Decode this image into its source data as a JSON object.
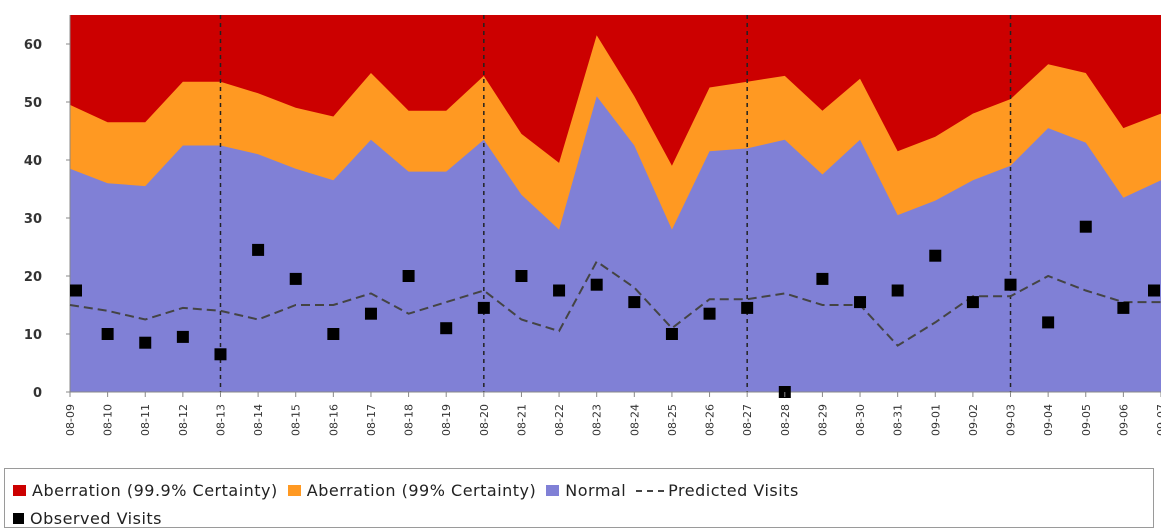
{
  "chart_data": {
    "type": "area",
    "title": "",
    "xlabel": "",
    "ylabel": "",
    "ylim": [
      0,
      65
    ],
    "yticks": [
      "0",
      "10",
      "20",
      "30",
      "40",
      "50",
      "60"
    ],
    "grid": "vertical dashed lines at weekly intervals",
    "x": [
      "08-09",
      "08-10",
      "08-11",
      "08-12",
      "08-13",
      "08-14",
      "08-15",
      "08-16",
      "08-17",
      "08-18",
      "08-19",
      "08-20",
      "08-21",
      "08-22",
      "08-23",
      "08-24",
      "08-25",
      "08-26",
      "08-27",
      "08-28",
      "08-29",
      "08-30",
      "08-31",
      "09-01",
      "09-02",
      "09-03",
      "09-04",
      "09-05",
      "09-06",
      "09-07"
    ],
    "series": [
      {
        "name": "Aberration (99.9% Certainty)",
        "color": "#cc0000",
        "values": [
          65,
          65,
          65,
          65,
          65,
          65,
          65,
          65,
          65,
          65,
          65,
          65,
          65,
          65,
          65,
          65,
          65,
          65,
          65,
          65,
          65,
          65,
          65,
          65,
          65,
          65,
          65,
          65,
          65,
          65
        ]
      },
      {
        "name": "Aberration (99% Certainty)",
        "color": "#ff9922",
        "values": [
          49.5,
          46.5,
          46.5,
          53.5,
          53.5,
          51.5,
          49,
          47.5,
          55,
          48.5,
          48.5,
          54.5,
          44.5,
          39.5,
          61.5,
          51,
          39,
          52.5,
          53.5,
          54.5,
          48.5,
          54,
          41.5,
          44,
          48,
          50.5,
          56.5,
          55,
          45.5,
          48
        ]
      },
      {
        "name": "Normal",
        "color": "#8080d6",
        "values": [
          38.5,
          36,
          35.5,
          42.5,
          42.5,
          41,
          38.5,
          36.5,
          43.5,
          38,
          38,
          43.5,
          34,
          28,
          51,
          42.5,
          28,
          41.5,
          42,
          43.5,
          37.5,
          43.5,
          30.5,
          33,
          36.5,
          39,
          45.5,
          43,
          33.5,
          36.5
        ]
      },
      {
        "name": "Predicted Visits",
        "color": "#444444",
        "values": [
          15,
          14,
          12.5,
          14.5,
          14,
          12.5,
          15,
          15,
          17,
          13.5,
          15.5,
          17.5,
          12.5,
          10.5,
          22.5,
          18,
          11,
          16,
          16,
          17,
          15,
          15,
          8,
          12,
          16.5,
          16.5,
          20,
          17.5,
          15.5,
          15.5
        ]
      },
      {
        "name": "Observed Visits",
        "color": "#000000",
        "values": [
          17.5,
          10,
          8.5,
          9.5,
          6.5,
          24.5,
          19.5,
          10,
          13.5,
          20,
          11,
          14.5,
          20,
          17.5,
          18.5,
          15.5,
          10,
          13.5,
          14.5,
          0,
          19.5,
          15.5,
          17.5,
          23.5,
          15.5,
          18.5,
          12,
          28.5,
          14.5,
          17.5
        ]
      }
    ],
    "legend": {
      "placement": "bottom",
      "items": [
        {
          "label": "Aberration (99.9% Certainty)",
          "color": "#cc0000",
          "shape": "square"
        },
        {
          "label": "Aberration (99% Certainty)",
          "color": "#ff9922",
          "shape": "square"
        },
        {
          "label": "Normal",
          "color": "#8080d6",
          "shape": "square"
        },
        {
          "label": "Predicted Visits",
          "color": "#444444",
          "shape": "dash"
        },
        {
          "label": "Observed Visits",
          "color": "#000000",
          "shape": "square"
        }
      ]
    }
  }
}
